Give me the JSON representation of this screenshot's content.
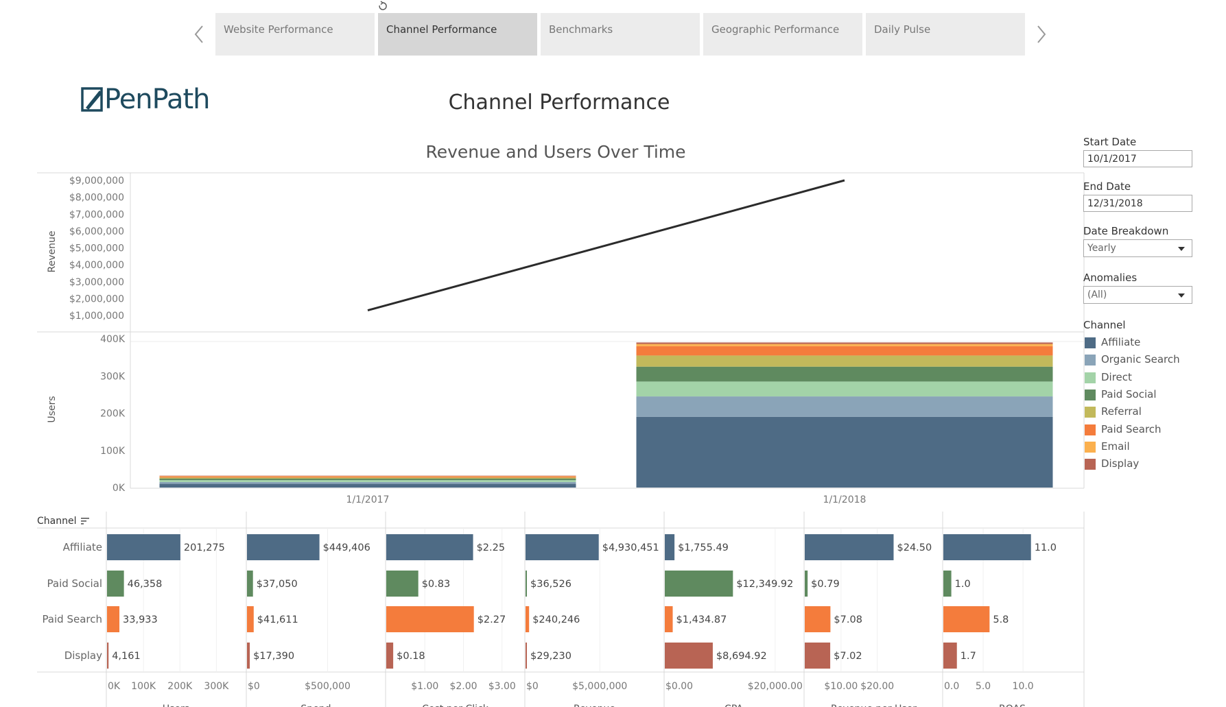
{
  "tabs": [
    {
      "label": "Website Performance",
      "active": false
    },
    {
      "label": "Channel Performance",
      "active": true
    },
    {
      "label": "Benchmarks",
      "active": false
    },
    {
      "label": "Geographic Performance",
      "active": false
    },
    {
      "label": "Daily Pulse",
      "active": false
    }
  ],
  "logo": {
    "text": "PenPath"
  },
  "page_title": "Channel Performance",
  "filters": {
    "start_date_label": "Start Date",
    "start_date_value": "10/1/2017",
    "end_date_label": "End Date",
    "end_date_value": "12/31/2018",
    "date_breakdown_label": "Date Breakdown",
    "date_breakdown_value": "Yearly",
    "anomalies_label": "Anomalies",
    "anomalies_value": "(All)",
    "channel_label": "Channel"
  },
  "channels": [
    {
      "name": "Affiliate",
      "color": "#4e6b85"
    },
    {
      "name": "Organic Search",
      "color": "#8aa4b8"
    },
    {
      "name": "Direct",
      "color": "#a3d3a8"
    },
    {
      "name": "Paid Social",
      "color": "#5f8a5f"
    },
    {
      "name": "Referral",
      "color": "#c2b95b"
    },
    {
      "name": "Paid Search",
      "color": "#f47c3c"
    },
    {
      "name": "Email",
      "color": "#fbb04e"
    },
    {
      "name": "Display",
      "color": "#b86454"
    }
  ],
  "chart_data": [
    {
      "type": "line",
      "title": "Revenue and Users Over Time",
      "ylabel": "Revenue",
      "x": [
        "1/1/2017",
        "1/1/2018"
      ],
      "series": [
        {
          "values": [
            1300000,
            9000000
          ]
        }
      ],
      "ylim": [
        0,
        9500000
      ],
      "yticks": [
        1000000,
        2000000,
        3000000,
        4000000,
        5000000,
        6000000,
        7000000,
        8000000,
        9000000
      ],
      "ytick_labels": [
        "$1,000,000",
        "$2,000,000",
        "$3,000,000",
        "$4,000,000",
        "$5,000,000",
        "$6,000,000",
        "$7,000,000",
        "$8,000,000",
        "$9,000,000"
      ]
    },
    {
      "type": "bar",
      "stacked": true,
      "ylabel": "Users",
      "categories": [
        "1/1/2017",
        "1/1/2018"
      ],
      "ylim": [
        0,
        410000
      ],
      "yticks": [
        0,
        100000,
        200000,
        300000,
        400000
      ],
      "ytick_labels": [
        "0K",
        "100K",
        "200K",
        "300K",
        "400K"
      ],
      "series": [
        {
          "name": "Affiliate",
          "values": [
            10000,
            190000
          ]
        },
        {
          "name": "Organic Search",
          "values": [
            5000,
            55000
          ]
        },
        {
          "name": "Direct",
          "values": [
            5000,
            40000
          ]
        },
        {
          "name": "Paid Social",
          "values": [
            4000,
            40000
          ]
        },
        {
          "name": "Referral",
          "values": [
            3000,
            30000
          ]
        },
        {
          "name": "Paid Search",
          "values": [
            3000,
            25000
          ]
        },
        {
          "name": "Email",
          "values": [
            1000,
            6000
          ]
        },
        {
          "name": "Display",
          "values": [
            1000,
            4000
          ]
        }
      ]
    },
    {
      "type": "bar",
      "orientation": "horizontal",
      "categories": [
        "Affiliate",
        "Paid Social",
        "Paid Search",
        "Display"
      ],
      "category_header": "Channel",
      "panels": [
        {
          "label": "Users",
          "values": [
            201275,
            46358,
            33933,
            4161
          ],
          "value_labels": [
            "201,275",
            "46,358",
            "33,933",
            "4,161"
          ],
          "xlim": [
            0,
            320000
          ],
          "ticks": [
            0,
            100000,
            200000,
            300000
          ],
          "tick_labels": [
            "0K",
            "100K",
            "200K",
            "300K"
          ]
        },
        {
          "label": "Spend",
          "values": [
            449406,
            37050,
            41611,
            17390
          ],
          "value_labels": [
            "$449,406",
            "$37,050",
            "$41,611",
            "$17,390"
          ],
          "xlim": [
            0,
            800000
          ],
          "ticks": [
            0,
            500000
          ],
          "tick_labels": [
            "$0",
            "$500,000"
          ]
        },
        {
          "label": "Cost per Click",
          "values": [
            2.25,
            0.83,
            2.27,
            0.18
          ],
          "value_labels": [
            "$2.25",
            "$0.83",
            "$2.27",
            "$0.18"
          ],
          "xlim": [
            0,
            3.2
          ],
          "ticks": [
            1,
            2,
            3
          ],
          "tick_labels": [
            "$1.00",
            "$2.00",
            "$3.00"
          ]
        },
        {
          "label": "Revenue",
          "values": [
            4930451,
            36526,
            240246,
            29230
          ],
          "value_labels": [
            "$4,930,451",
            "$36,526",
            "$240,246",
            "$29,230"
          ],
          "xlim": [
            0,
            8500000
          ],
          "ticks": [
            0,
            5000000
          ],
          "tick_labels": [
            "$0",
            "$5,000,000"
          ]
        },
        {
          "label": "CPA",
          "values": [
            1755.49,
            12349.92,
            1434.87,
            8694.92
          ],
          "value_labels": [
            "$1,755.49",
            "$12,349.92",
            "$1,434.87",
            "$8,694.92"
          ],
          "xlim": [
            0,
            23000
          ],
          "ticks": [
            0,
            20000
          ],
          "tick_labels": [
            "$0.00",
            "$20,000.00"
          ]
        },
        {
          "label": "Revenue per User",
          "values": [
            24.5,
            0.79,
            7.08,
            7.02
          ],
          "value_labels": [
            "$24.50",
            "$0.79",
            "$7.08",
            "$7.02"
          ],
          "xlim": [
            0,
            35
          ],
          "ticks": [
            10,
            20
          ],
          "tick_labels": [
            "$10.00",
            "$20.00"
          ]
        },
        {
          "label": "ROAS",
          "values": [
            11.0,
            1.0,
            5.8,
            1.7
          ],
          "value_labels": [
            "11.0",
            "1.0",
            "5.8",
            "1.7"
          ],
          "xlim": [
            0,
            15.5
          ],
          "ticks": [
            0,
            5,
            10
          ],
          "tick_labels": [
            "0.0",
            "5.0",
            "10.0"
          ]
        }
      ],
      "bar_colors": {
        "Affiliate": "#4e6b85",
        "Paid Social": "#5f8a5f",
        "Paid Search": "#f47c3c",
        "Display": "#b86454"
      }
    }
  ]
}
